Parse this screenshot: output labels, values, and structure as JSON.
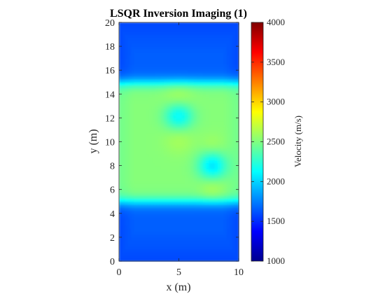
{
  "chart_data": {
    "type": "heatmap",
    "title": "LSQR Inversion Imaging (1)",
    "xlabel": "x (m)",
    "ylabel": "y (m)",
    "xlim": [
      0,
      10
    ],
    "ylim": [
      0,
      20
    ],
    "xticks": [
      "0",
      "5",
      "10"
    ],
    "yticks": [
      "0",
      "2",
      "4",
      "6",
      "8",
      "10",
      "12",
      "14",
      "16",
      "18",
      "20"
    ],
    "grid": false,
    "colorbar": {
      "label": "Velocity (m/s)",
      "range": [
        1000,
        4000
      ],
      "ticks": [
        "1000",
        "1500",
        "2000",
        "2500",
        "3000",
        "3500",
        "4000"
      ],
      "colormap": "jet"
    },
    "model": {
      "background_velocity": 1650,
      "layers": [
        {
          "y_range": [
            5,
            15
          ],
          "velocity": 2520
        }
      ],
      "anomalies": [
        {
          "center": [
            5.0,
            12.2
          ],
          "radius": 0.85,
          "velocity": 2100
        },
        {
          "center": [
            7.8,
            8.0
          ],
          "radius": 0.85,
          "velocity": 2050
        },
        {
          "center": [
            5.0,
            13.7
          ],
          "radius": 0.9,
          "velocity": 2640
        },
        {
          "center": [
            5.0,
            10.3
          ],
          "radius": 0.9,
          "velocity": 2620
        },
        {
          "center": [
            7.8,
            9.7
          ],
          "radius": 0.7,
          "velocity": 2600
        },
        {
          "center": [
            7.8,
            6.2
          ],
          "radius": 0.75,
          "velocity": 2640
        }
      ]
    }
  }
}
